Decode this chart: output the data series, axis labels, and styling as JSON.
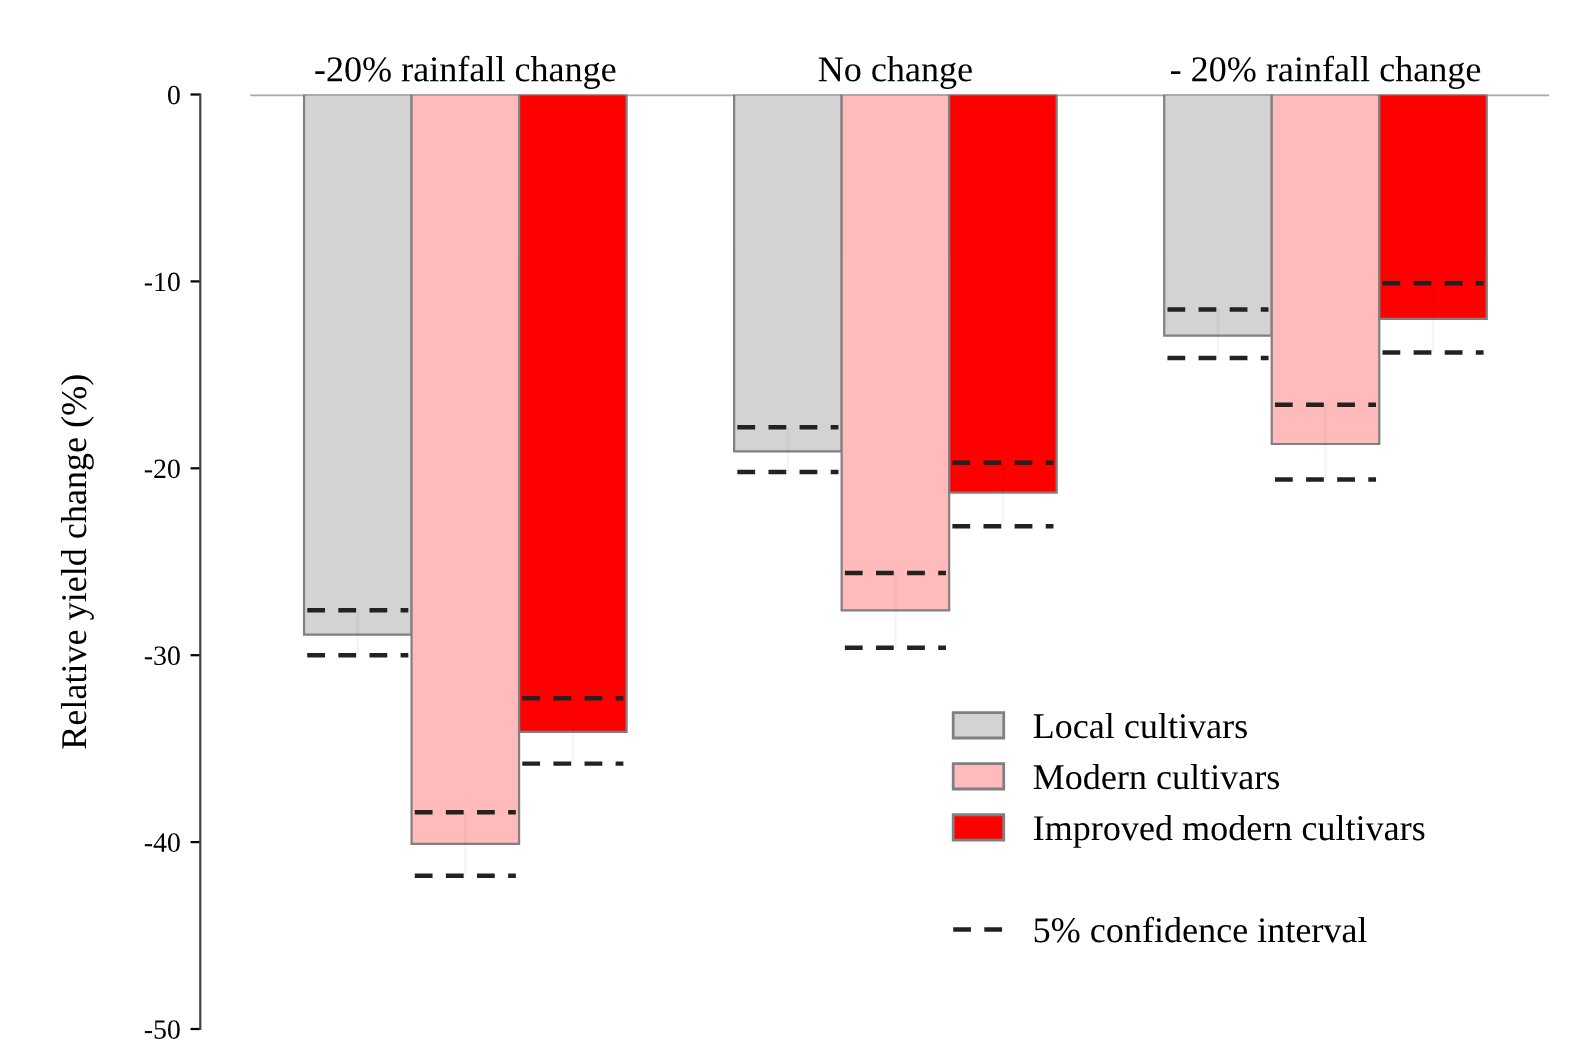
{
  "chart_data": {
    "type": "bar",
    "ylabel": "Relative yield change (%)",
    "categories": [
      "-20% rainfall change",
      "No change",
      "- 20% rainfall change"
    ],
    "series": [
      {
        "name": "Local cultivars",
        "color": "#d3d3d3",
        "values": [
          -28.9,
          -19.1,
          -12.9
        ],
        "errors": [
          [
            -30.0,
            -27.6
          ],
          [
            -20.2,
            -17.8
          ],
          [
            -14.1,
            -11.5
          ]
        ]
      },
      {
        "name": "Modern cultivars",
        "color": "#ffbbbb",
        "values": [
          -40.1,
          -27.6,
          -18.7
        ],
        "errors": [
          [
            -41.8,
            -38.4
          ],
          [
            -29.6,
            -25.6
          ],
          [
            -20.6,
            -16.6
          ]
        ]
      },
      {
        "name": "Improved modern cultivars",
        "color": "#ff0000",
        "values": [
          -34.1,
          -21.3,
          -12.0
        ],
        "errors": [
          [
            -35.8,
            -32.3
          ],
          [
            -23.1,
            -19.7
          ],
          [
            -13.8,
            -10.1
          ]
        ]
      }
    ],
    "annotations": [
      "5% confidence interval"
    ],
    "ylim": [
      -50,
      0
    ],
    "yticks": [
      0,
      -10,
      -20,
      -30,
      -40,
      -50
    ],
    "legend": "bottom right",
    "line_style": "dashed",
    "grid": false
  }
}
